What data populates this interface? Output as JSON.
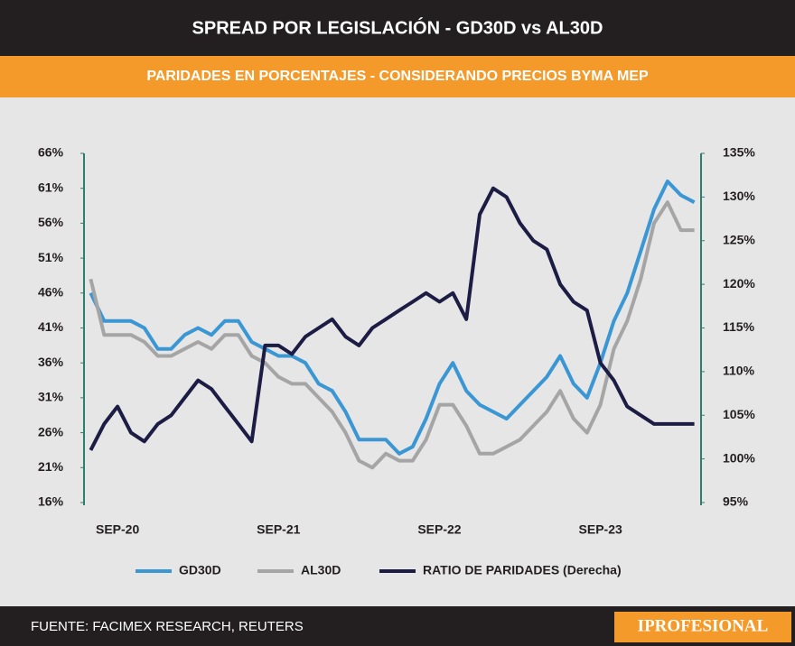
{
  "chart_data": {
    "type": "line",
    "title": "SPREAD POR LEGISLACIÓN - GD30D vs AL30D",
    "subtitle": "PARIDADES EN PORCENTAJES - CONSIDERANDO PRECIOS BYMA MEP",
    "categories": [
      null,
      null,
      "SEP-20",
      null,
      null,
      null,
      null,
      null,
      null,
      null,
      null,
      null,
      null,
      null,
      "SEP-21",
      null,
      null,
      null,
      null,
      null,
      null,
      null,
      null,
      null,
      null,
      null,
      "SEP-22",
      null,
      null,
      null,
      null,
      null,
      null,
      null,
      null,
      null,
      null,
      null,
      "SEP-23",
      null,
      null,
      null,
      null,
      null,
      null,
      null
    ],
    "series": [
      {
        "name": "GD30D",
        "color": "#3a97d4",
        "values": [
          46,
          42,
          42,
          42,
          41,
          38,
          38,
          40,
          41,
          40,
          42,
          42,
          39,
          38,
          37,
          37,
          36,
          33,
          32,
          29,
          25,
          25,
          25,
          23,
          24,
          28,
          33,
          36,
          32,
          30,
          29,
          28,
          30,
          32,
          34,
          37,
          33,
          31,
          36,
          42,
          46,
          52,
          58,
          62,
          60,
          59
        ]
      },
      {
        "name": "AL30D",
        "color": "#a5a5a5",
        "values": [
          48,
          40,
          40,
          40,
          39,
          37,
          37,
          38,
          39,
          38,
          40,
          40,
          37,
          36,
          34,
          33,
          33,
          31,
          29,
          26,
          22,
          21,
          23,
          22,
          22,
          25,
          30,
          30,
          27,
          23,
          23,
          24,
          25,
          27,
          29,
          32,
          28,
          26,
          30,
          38,
          42,
          48,
          56,
          59,
          55,
          55
        ]
      },
      {
        "name": "RATIO DE PARIDADES (Derecha)",
        "color": "#1c1c44",
        "axis": "y2",
        "values": [
          101,
          104,
          106,
          103,
          102,
          104,
          105,
          107,
          109,
          108,
          106,
          104,
          102,
          113,
          113,
          112,
          114,
          115,
          116,
          114,
          113,
          115,
          116,
          117,
          118,
          119,
          118,
          119,
          116,
          128,
          131,
          130,
          127,
          125,
          124,
          120,
          118,
          117,
          111,
          109,
          106,
          105,
          104,
          104,
          104,
          104
        ]
      }
    ],
    "ylim": [
      16,
      66
    ],
    "yticks": [
      {
        "value": 16,
        "label": "16%"
      },
      {
        "value": 21,
        "label": "21%"
      },
      {
        "value": 26,
        "label": "26%"
      },
      {
        "value": 31,
        "label": "31%"
      },
      {
        "value": 36,
        "label": "36%"
      },
      {
        "value": 41,
        "label": "41%"
      },
      {
        "value": 46,
        "label": "46%"
      },
      {
        "value": 51,
        "label": "51%"
      },
      {
        "value": 56,
        "label": "56%"
      },
      {
        "value": 61,
        "label": "61%"
      },
      {
        "value": 66,
        "label": "66%"
      }
    ],
    "y2lim": [
      95,
      135
    ],
    "y2ticks": [
      {
        "value": 95,
        "label": "95%"
      },
      {
        "value": 100,
        "label": "100%"
      },
      {
        "value": 105,
        "label": "105%"
      },
      {
        "value": 110,
        "label": "110%"
      },
      {
        "value": 115,
        "label": "115%"
      },
      {
        "value": 120,
        "label": "120%"
      },
      {
        "value": 125,
        "label": "125%"
      },
      {
        "value": 130,
        "label": "130%"
      },
      {
        "value": 135,
        "label": "135%"
      }
    ],
    "legend": "bottom"
  },
  "footer": {
    "source": "FUENTE: FACIMEX RESEARCH, REUTERS",
    "brand": "IPROFESIONAL"
  }
}
